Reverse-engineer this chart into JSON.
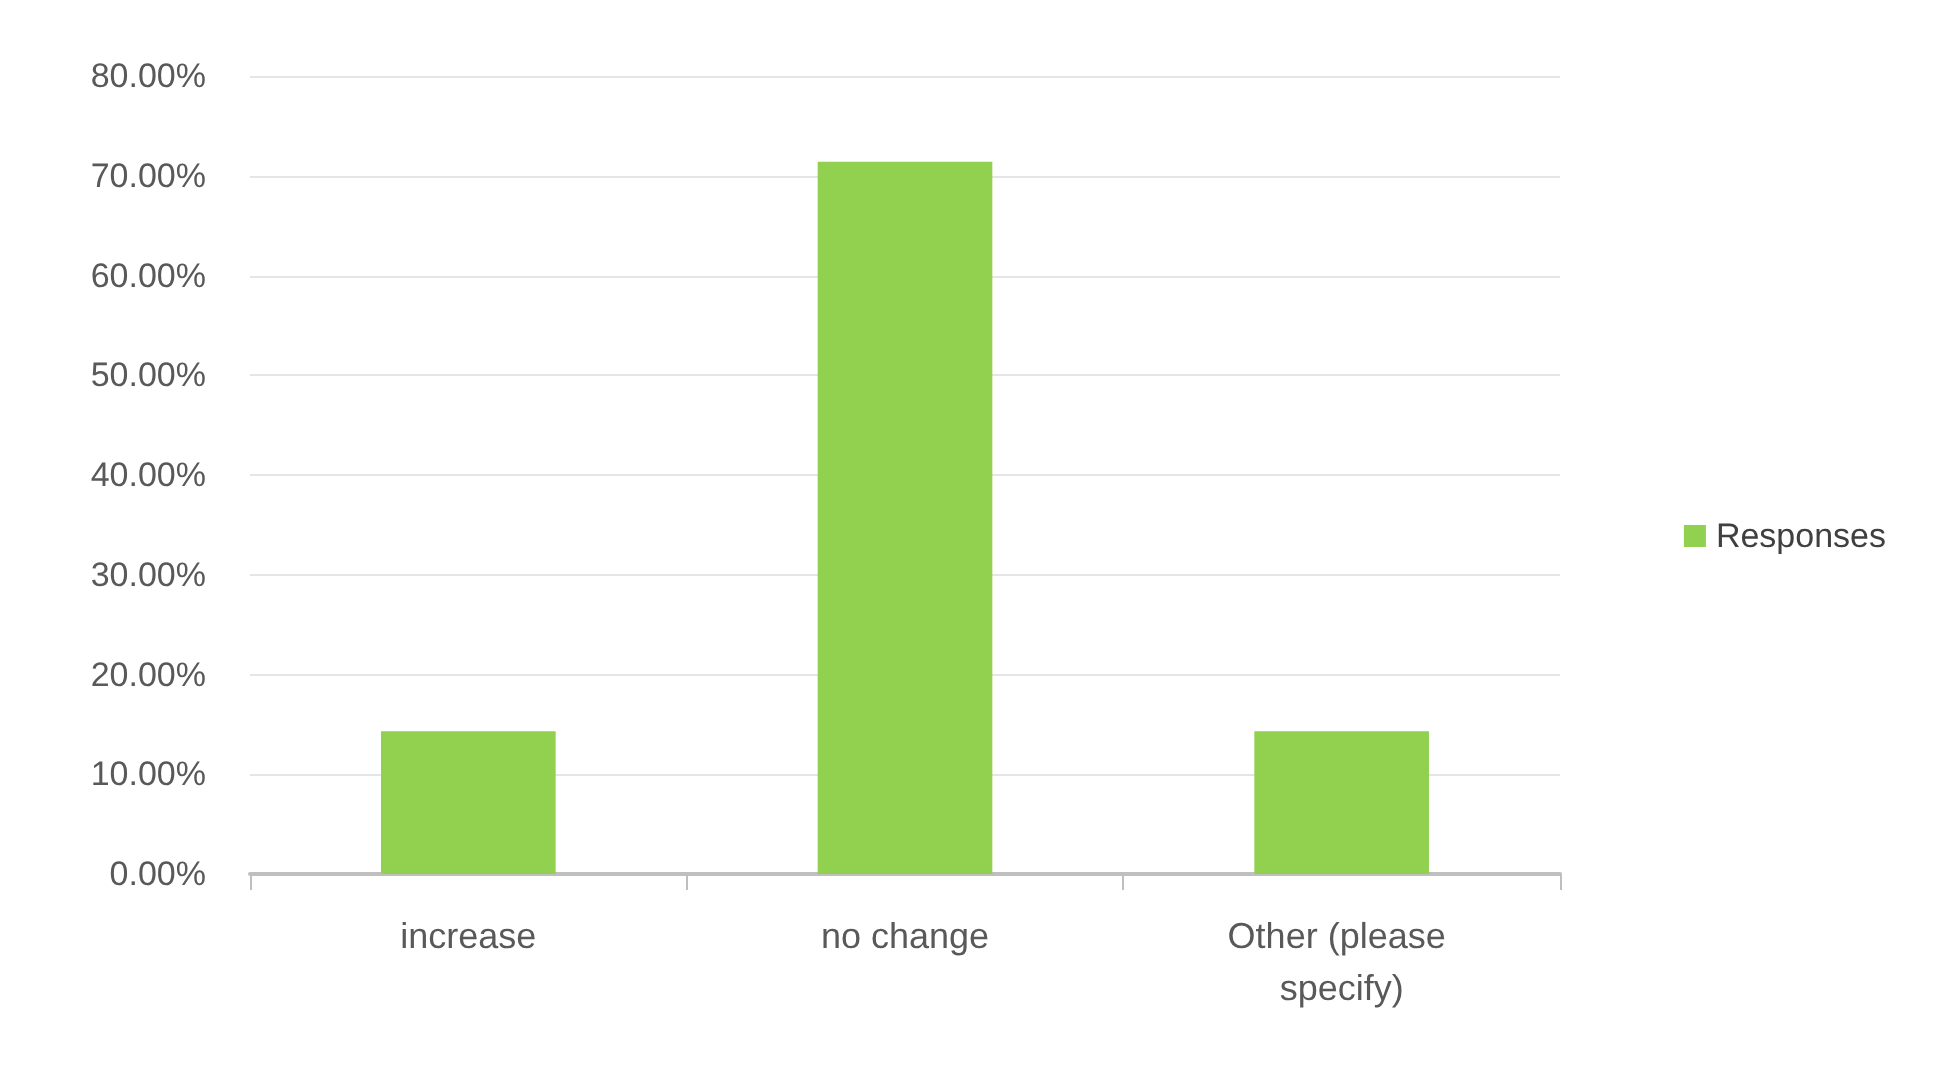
{
  "chart_data": {
    "type": "bar",
    "categories": [
      "increase",
      "no change",
      "Other (please specify)"
    ],
    "series": [
      {
        "name": "Responses",
        "color": "#92d050",
        "values": [
          14.3,
          71.4,
          14.3
        ]
      }
    ],
    "ylim": [
      0,
      80
    ],
    "yticks": [
      {
        "value": 0,
        "label": "0.00%"
      },
      {
        "value": 10,
        "label": "10.00%"
      },
      {
        "value": 20,
        "label": "20.00%"
      },
      {
        "value": 30,
        "label": "30.00%"
      },
      {
        "value": 40,
        "label": "40.00%"
      },
      {
        "value": 50,
        "label": "50.00%"
      },
      {
        "value": 60,
        "label": "60.00%"
      },
      {
        "value": 70,
        "label": "70.00%"
      },
      {
        "value": 80,
        "label": "80.00%"
      }
    ],
    "grid": "y",
    "legend": "right"
  }
}
